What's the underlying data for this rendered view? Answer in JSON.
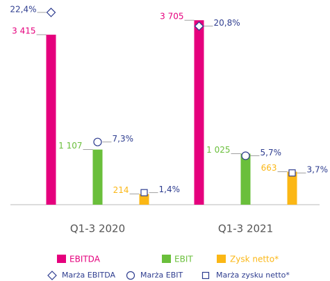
{
  "chart_data": {
    "type": "bar",
    "categories": [
      "Q1-3 2020",
      "Q1-3 2021"
    ],
    "ylim": [
      0,
      4000
    ],
    "y2lim": [
      0,
      23.2
    ],
    "series": [
      {
        "name": "EBITDA",
        "color": "#e5007d",
        "values": [
          3415,
          3705
        ],
        "value_labels": [
          "3 415",
          "3 705"
        ]
      },
      {
        "name": "EBIT",
        "color": "#6abf3b",
        "values": [
          1107,
          1025
        ],
        "value_labels": [
          "1 107",
          "1 025"
        ]
      },
      {
        "name": "Zysk netto*",
        "color": "#fbb715",
        "values": [
          214,
          663
        ],
        "value_labels": [
          "214",
          "663"
        ]
      },
      {
        "name": "Marża EBITDA",
        "marker": "diamond",
        "color": "#2e3d8f",
        "axis": "y2",
        "values": [
          22.4,
          20.8
        ],
        "value_labels": [
          "22,4%",
          "20,8%"
        ]
      },
      {
        "name": "Marża EBIT",
        "marker": "circle",
        "color": "#2e3d8f",
        "axis": "y2",
        "values": [
          7.3,
          5.7
        ],
        "value_labels": [
          "7,3%",
          "5,7%"
        ]
      },
      {
        "name": "Marża zysku netto*",
        "marker": "square",
        "color": "#2e3d8f",
        "axis": "y2",
        "values": [
          1.4,
          3.7
        ],
        "value_labels": [
          "1,4%",
          "3,7%"
        ]
      }
    ]
  }
}
